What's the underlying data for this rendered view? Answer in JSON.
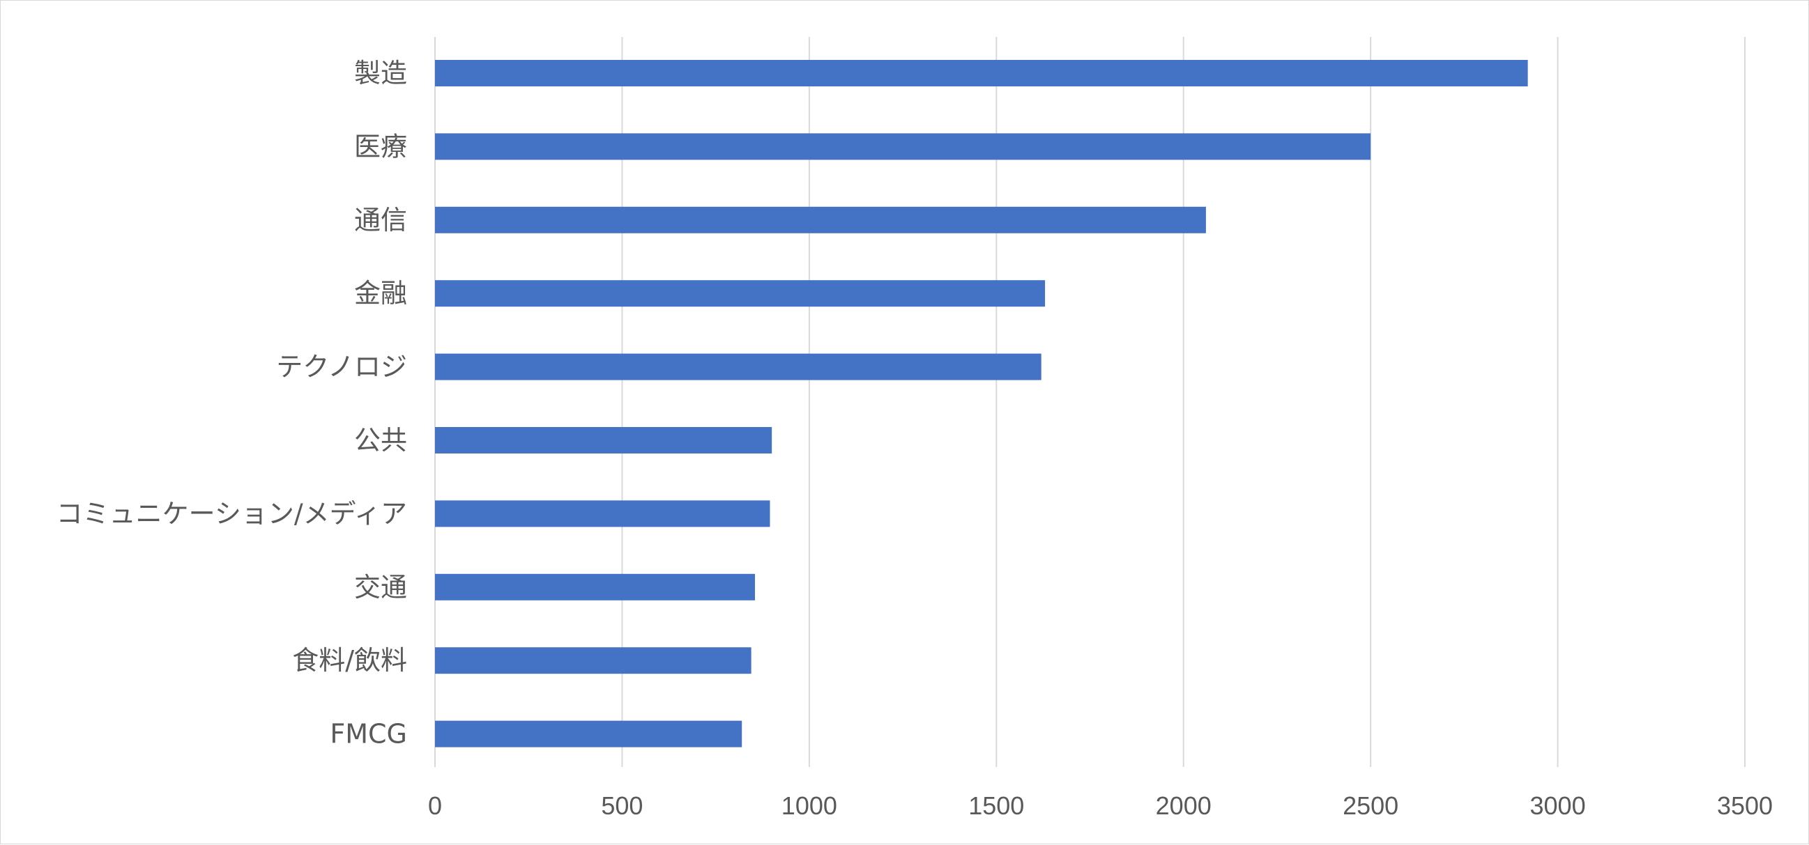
{
  "chart_data": {
    "type": "bar",
    "orientation": "horizontal",
    "categories": [
      "製造",
      "医療",
      "通信",
      "金融",
      "テクノロジ",
      "公共",
      "コミュニケーション/メディア",
      "交通",
      "食料/飲料",
      "FMCG"
    ],
    "series": [
      {
        "values": [
          2920,
          2500,
          2060,
          1630,
          1620,
          900,
          895,
          855,
          845,
          820
        ]
      }
    ],
    "xlim": [
      0,
      3500
    ],
    "xticks": [
      0,
      500,
      1000,
      1500,
      2000,
      2500,
      3000,
      3500
    ],
    "grid": true,
    "legend": "none",
    "title": "",
    "xlabel": "",
    "ylabel": "",
    "colors": {
      "bar": "#4472c4",
      "grid": "#d9d9d9",
      "text": "#595959"
    }
  }
}
